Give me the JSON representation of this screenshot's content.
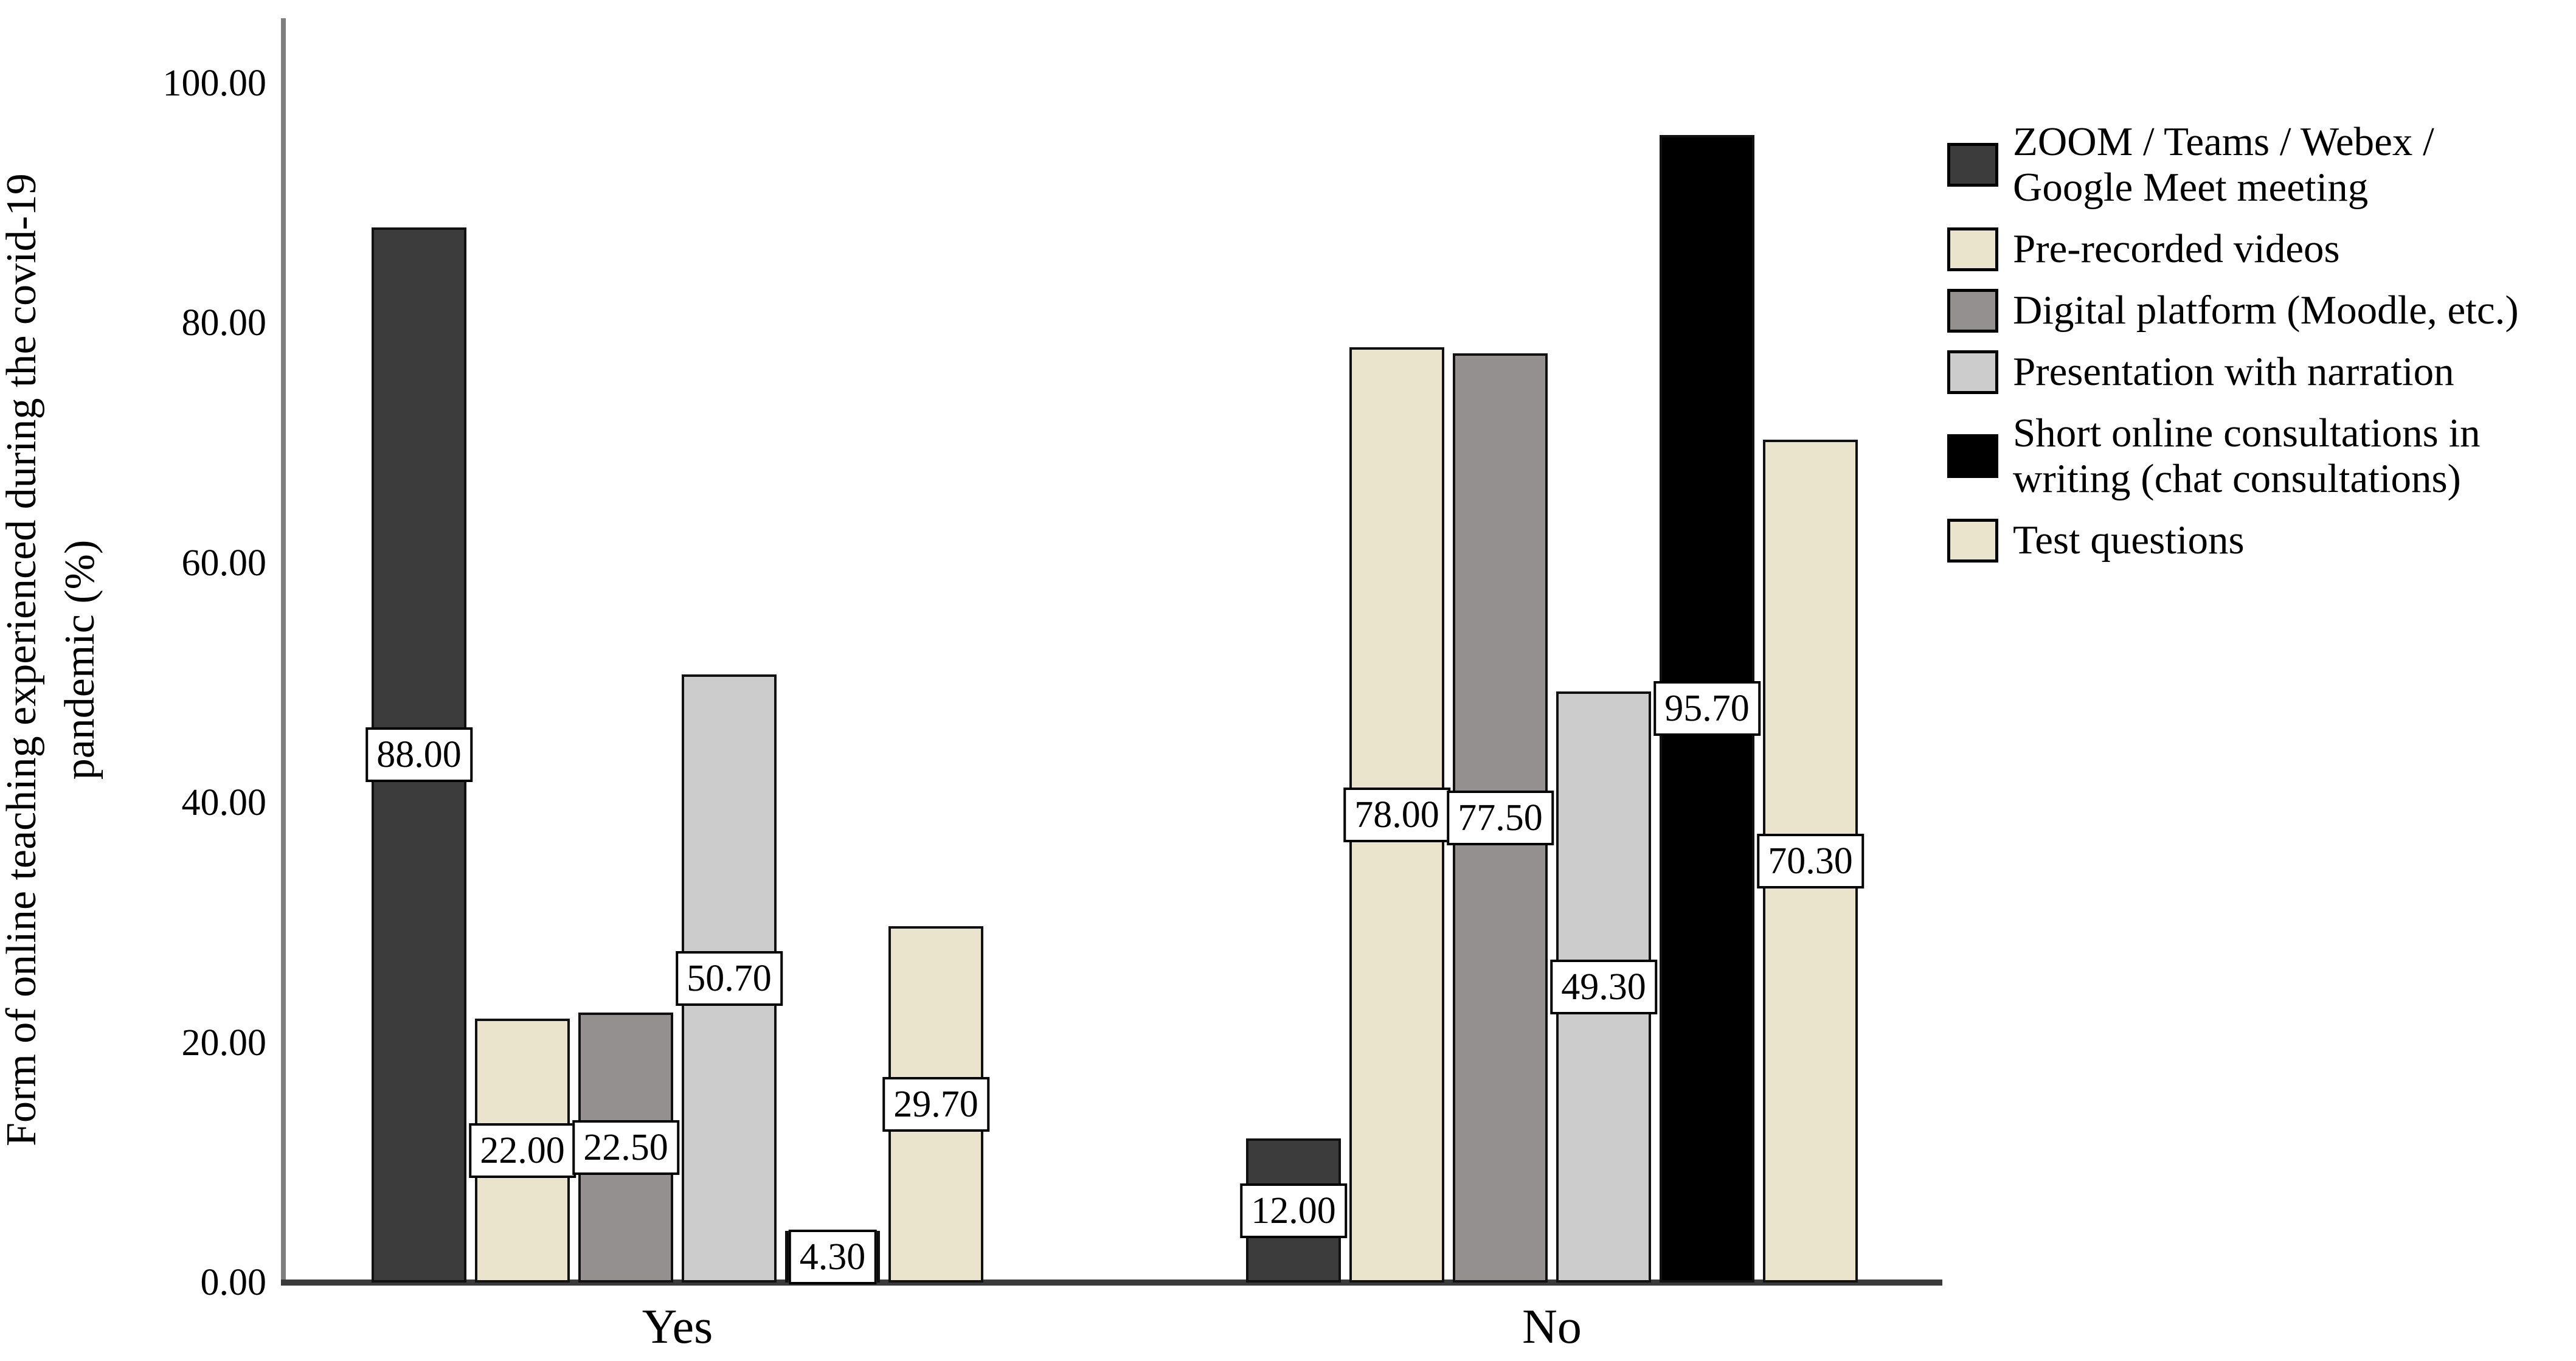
{
  "figure": {
    "background": "#ffffff"
  },
  "y_axis": {
    "title_line1": "Form of online teaching experienced during the covid-19",
    "title_line2": "pandemic (%)",
    "tick_values": [
      100,
      80,
      60,
      40,
      20,
      0
    ],
    "tick_labels": [
      "100.00",
      "80.00",
      "60.00",
      "40.00",
      "20.00",
      "0.00"
    ],
    "axis_color": "#7f7f7f"
  },
  "x_axis": {
    "axis_color": "#3a3a3a"
  },
  "chart_data": {
    "type": "bar",
    "title": "",
    "categories": [
      "Yes",
      "No"
    ],
    "series": [
      {
        "name": "ZOOM / Teams / Webex / Google Meet meeting",
        "color": "#3c3c3c",
        "values": [
          88.0,
          12.0
        ]
      },
      {
        "name": "Pre-recorded videos",
        "color": "#ebe4cd",
        "values": [
          22.0,
          78.0
        ]
      },
      {
        "name": "Digital platform (Moodle, etc.)",
        "color": "#959090",
        "values": [
          22.5,
          77.5
        ]
      },
      {
        "name": "Presentation with narration",
        "color": "#cccccc",
        "values": [
          50.7,
          49.3
        ]
      },
      {
        "name": "Short online consultations in writing (chat consultations)",
        "color": "#000000",
        "values": [
          4.3,
          95.7
        ]
      },
      {
        "name": "Test questions",
        "color": "#ebe4cd",
        "values": [
          29.7,
          70.3
        ]
      }
    ],
    "value_labels": [
      "88.00",
      "22.00",
      "22.50",
      "50.70",
      "4.30",
      "29.70",
      "12.00",
      "78.00",
      "77.50",
      "49.30",
      "95.70",
      "70.30"
    ],
    "xlabel": "",
    "ylabel": "Form of online teaching experienced during the covid-19 pandemic (%)",
    "ylim": [
      0,
      105.5
    ],
    "yticks": [
      0,
      20,
      40,
      60,
      80,
      100
    ],
    "grid": false,
    "legend_position": "right",
    "value_label_style": "boxed-at-bar-middle"
  },
  "legend": {
    "items": [
      {
        "lines": [
          "ZOOM / Teams / Webex /",
          "Google Meet meeting"
        ],
        "color": "#3c3c3c"
      },
      {
        "lines": [
          "Pre-recorded videos"
        ],
        "color": "#ebe4cd"
      },
      {
        "lines": [
          "Digital platform (Moodle, etc.)"
        ],
        "color": "#959090"
      },
      {
        "lines": [
          "Presentation with narration"
        ],
        "color": "#cccccc"
      },
      {
        "lines": [
          "Short online consultations in",
          "writing (chat consultations)"
        ],
        "color": "#000000"
      },
      {
        "lines": [
          "Test questions"
        ],
        "color": "#ebe4cd"
      }
    ]
  }
}
